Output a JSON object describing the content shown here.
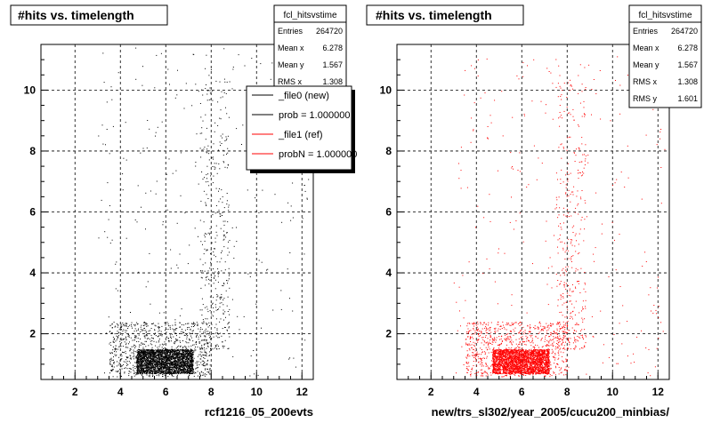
{
  "chart_data": [
    {
      "type": "scatter",
      "title": "#hits vs. timelength",
      "xlabel": "rcf1216_05_200evts",
      "ylabel": "",
      "xlim": [
        0.5,
        12.5
      ],
      "ylim": [
        0.5,
        11.5
      ],
      "xticks": [
        2,
        4,
        6,
        8,
        10,
        12
      ],
      "yticks": [
        2,
        4,
        6,
        8,
        10
      ],
      "grid": true,
      "marker_color": "#000000",
      "stats": {
        "name": "fcl_hitsvstime",
        "rows": [
          {
            "label": "Entries",
            "value": "264720"
          },
          {
            "label": "Mean x",
            "value": "6.278"
          },
          {
            "label": "Mean y",
            "value": "1.567"
          },
          {
            "label": "RMS x",
            "value": "1.308"
          }
        ]
      },
      "legend": {
        "placement": "top-right",
        "entries": [
          {
            "label": "_file0 (new)",
            "color": "#000000"
          },
          {
            "label": "prob = 1.000000",
            "color": "#000000"
          },
          {
            "label": "_file1 (ref)",
            "color": "#ff0000"
          },
          {
            "label": "probN = 1.000000",
            "color": "#ff0000"
          }
        ]
      },
      "density": [
        {
          "x": [
            4.7,
            7.2
          ],
          "y": [
            0.7,
            1.5
          ],
          "level": "dense"
        },
        {
          "x": [
            3.5,
            8.0
          ],
          "y": [
            0.6,
            2.4
          ],
          "level": "medium"
        },
        {
          "x": [
            7.5,
            8.8
          ],
          "y": [
            1.5,
            10.5
          ],
          "level": "sparse"
        }
      ]
    },
    {
      "type": "scatter",
      "title": "#hits vs. timelength",
      "xlabel": "new/trs_sl302/year_2005/cucu200_minbias/",
      "ylabel": "",
      "xlim": [
        0.5,
        12.5
      ],
      "ylim": [
        0.5,
        11.5
      ],
      "xticks": [
        2,
        4,
        6,
        8,
        10,
        12
      ],
      "yticks": [
        2,
        4,
        6,
        8,
        10
      ],
      "grid": true,
      "marker_color": "#ff0000",
      "stats": {
        "name": "fcl_hitsvstime",
        "rows": [
          {
            "label": "Entries",
            "value": "264720"
          },
          {
            "label": "Mean x",
            "value": "6.278"
          },
          {
            "label": "Mean y",
            "value": "1.567"
          },
          {
            "label": "RMS x",
            "value": "1.308"
          },
          {
            "label": "RMS y",
            "value": "1.601"
          }
        ]
      },
      "density": [
        {
          "x": [
            4.7,
            7.2
          ],
          "y": [
            0.7,
            1.5
          ],
          "level": "dense"
        },
        {
          "x": [
            3.5,
            8.0
          ],
          "y": [
            0.6,
            2.4
          ],
          "level": "medium"
        },
        {
          "x": [
            7.5,
            8.8
          ],
          "y": [
            1.5,
            10.5
          ],
          "level": "sparse"
        }
      ]
    }
  ]
}
